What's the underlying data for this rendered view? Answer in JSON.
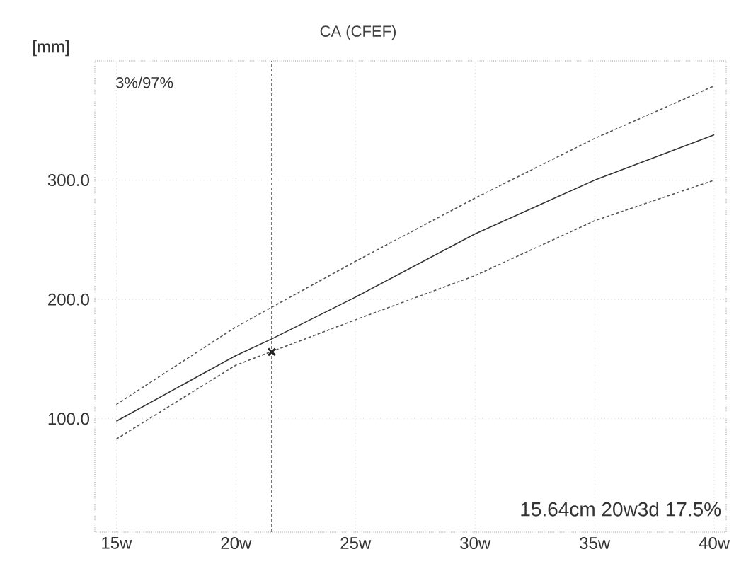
{
  "chart_data": {
    "type": "line",
    "title": "CA (CFEF)",
    "ylabel": "[mm]",
    "xlim": [
      14.1,
      40.5
    ],
    "ylim": [
      5,
      400
    ],
    "xticks": [
      {
        "value": 15,
        "label": "15w"
      },
      {
        "value": 20,
        "label": "20w"
      },
      {
        "value": 25,
        "label": "25w"
      },
      {
        "value": 30,
        "label": "30w"
      },
      {
        "value": 35,
        "label": "35w"
      },
      {
        "value": 40,
        "label": "40w"
      }
    ],
    "yticks": [
      {
        "value": 100,
        "label": "100.0"
      },
      {
        "value": 200,
        "label": "200.0"
      },
      {
        "value": 300,
        "label": "300.0"
      }
    ],
    "grid": true,
    "marker": "none",
    "series": [
      {
        "type": "line",
        "x": [
          15,
          20,
          25,
          30,
          35,
          40
        ],
        "values": [
          112,
          177,
          232,
          285,
          335,
          379
        ],
        "color": "#555555",
        "line_style": "dashed"
      },
      {
        "type": "line",
        "x": [
          15,
          20,
          21.5,
          25,
          30,
          35,
          40
        ],
        "values": [
          98,
          153,
          167,
          202,
          255,
          300,
          338
        ],
        "color": "#333333",
        "line_style": "solid"
      },
      {
        "type": "line",
        "x": [
          15,
          20,
          25,
          30,
          35,
          40
        ],
        "values": [
          83,
          145,
          183,
          220,
          266,
          300
        ],
        "color": "#555555",
        "line_style": "dashed"
      },
      {
        "type": "scatter",
        "x": [
          21.5
        ],
        "values": [
          156
        ],
        "color": "#222222",
        "marker": "cross"
      }
    ],
    "ref_lines": [
      {
        "axis": "x",
        "value": 21.5,
        "line_style": "dashed",
        "color": "#333333"
      }
    ],
    "annotations": [
      "3%/97%",
      "15.64cm 20w3d 17.5%"
    ]
  }
}
